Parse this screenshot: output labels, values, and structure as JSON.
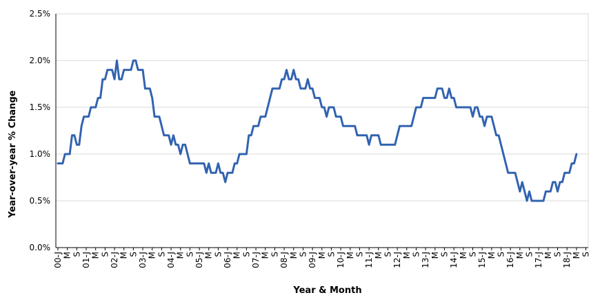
{
  "chart_data": {
    "type": "line",
    "title": "",
    "xlabel": "Year & Month",
    "ylabel": "Year-over-year % Change",
    "ylim": [
      0,
      2.5
    ],
    "y_ticks": [
      "0.0%",
      "0.5%",
      "1.0%",
      "1.5%",
      "2.0%",
      "2.5%"
    ],
    "x_tick_labels": [
      "00-J",
      "M",
      "S",
      "01-J",
      "M",
      "S",
      "02-J",
      "M",
      "S",
      "03-J",
      "M",
      "S",
      "04-J",
      "M",
      "S",
      "05-J",
      "M",
      "S",
      "06-J",
      "M",
      "S",
      "07-J",
      "M",
      "S",
      "08-J",
      "M",
      "S",
      "09-J",
      "M",
      "S",
      "10-J",
      "M",
      "S",
      "11-J",
      "M",
      "S",
      "12-J",
      "M",
      "S",
      "13-J",
      "M",
      "S",
      "14-J",
      "M",
      "S",
      "15-J",
      "M",
      "S",
      "16-J",
      "M",
      "S",
      "17-J",
      "M",
      "S",
      "18-J",
      "M",
      "S"
    ],
    "grid": "horizontal",
    "line_color": "#3263b0",
    "x_start": "2000-01",
    "x_step": "monthly",
    "series": [
      {
        "values": [
          0.9,
          0.9,
          0.9,
          1.0,
          1.0,
          1.0,
          1.2,
          1.2,
          1.1,
          1.1,
          1.3,
          1.4,
          1.4,
          1.4,
          1.5,
          1.5,
          1.5,
          1.6,
          1.6,
          1.8,
          1.8,
          1.9,
          1.9,
          1.9,
          1.8,
          2.0,
          1.8,
          1.8,
          1.9,
          1.9,
          1.9,
          1.9,
          2.0,
          2.0,
          1.9,
          1.9,
          1.9,
          1.7,
          1.7,
          1.7,
          1.6,
          1.4,
          1.4,
          1.4,
          1.3,
          1.2,
          1.2,
          1.2,
          1.1,
          1.2,
          1.1,
          1.1,
          1.0,
          1.1,
          1.1,
          1.0,
          0.9,
          0.9,
          0.9,
          0.9,
          0.9,
          0.9,
          0.9,
          0.8,
          0.9,
          0.8,
          0.8,
          0.8,
          0.9,
          0.8,
          0.8,
          0.7,
          0.8,
          0.8,
          0.8,
          0.9,
          0.9,
          1.0,
          1.0,
          1.0,
          1.0,
          1.2,
          1.2,
          1.3,
          1.3,
          1.3,
          1.4,
          1.4,
          1.4,
          1.5,
          1.6,
          1.7,
          1.7,
          1.7,
          1.7,
          1.8,
          1.8,
          1.9,
          1.8,
          1.8,
          1.9,
          1.8,
          1.8,
          1.7,
          1.7,
          1.7,
          1.8,
          1.7,
          1.7,
          1.6,
          1.6,
          1.6,
          1.5,
          1.5,
          1.4,
          1.5,
          1.5,
          1.5,
          1.4,
          1.4,
          1.4,
          1.3,
          1.3,
          1.3,
          1.3,
          1.3,
          1.3,
          1.2,
          1.2,
          1.2,
          1.2,
          1.2,
          1.1,
          1.2,
          1.2,
          1.2,
          1.2,
          1.1,
          1.1,
          1.1,
          1.1,
          1.1,
          1.1,
          1.1,
          1.2,
          1.3,
          1.3,
          1.3,
          1.3,
          1.3,
          1.3,
          1.4,
          1.5,
          1.5,
          1.5,
          1.6,
          1.6,
          1.6,
          1.6,
          1.6,
          1.6,
          1.7,
          1.7,
          1.7,
          1.6,
          1.6,
          1.7,
          1.6,
          1.6,
          1.5,
          1.5,
          1.5,
          1.5,
          1.5,
          1.5,
          1.5,
          1.4,
          1.5,
          1.5,
          1.4,
          1.4,
          1.3,
          1.4,
          1.4,
          1.4,
          1.3,
          1.2,
          1.2,
          1.1,
          1.0,
          0.9,
          0.8,
          0.8,
          0.8,
          0.8,
          0.7,
          0.6,
          0.7,
          0.6,
          0.5,
          0.6,
          0.5,
          0.5,
          0.5,
          0.5,
          0.5,
          0.5,
          0.6,
          0.6,
          0.6,
          0.7,
          0.7,
          0.6,
          0.7,
          0.7,
          0.8,
          0.8,
          0.8,
          0.9,
          0.9,
          1.0
        ]
      }
    ]
  }
}
